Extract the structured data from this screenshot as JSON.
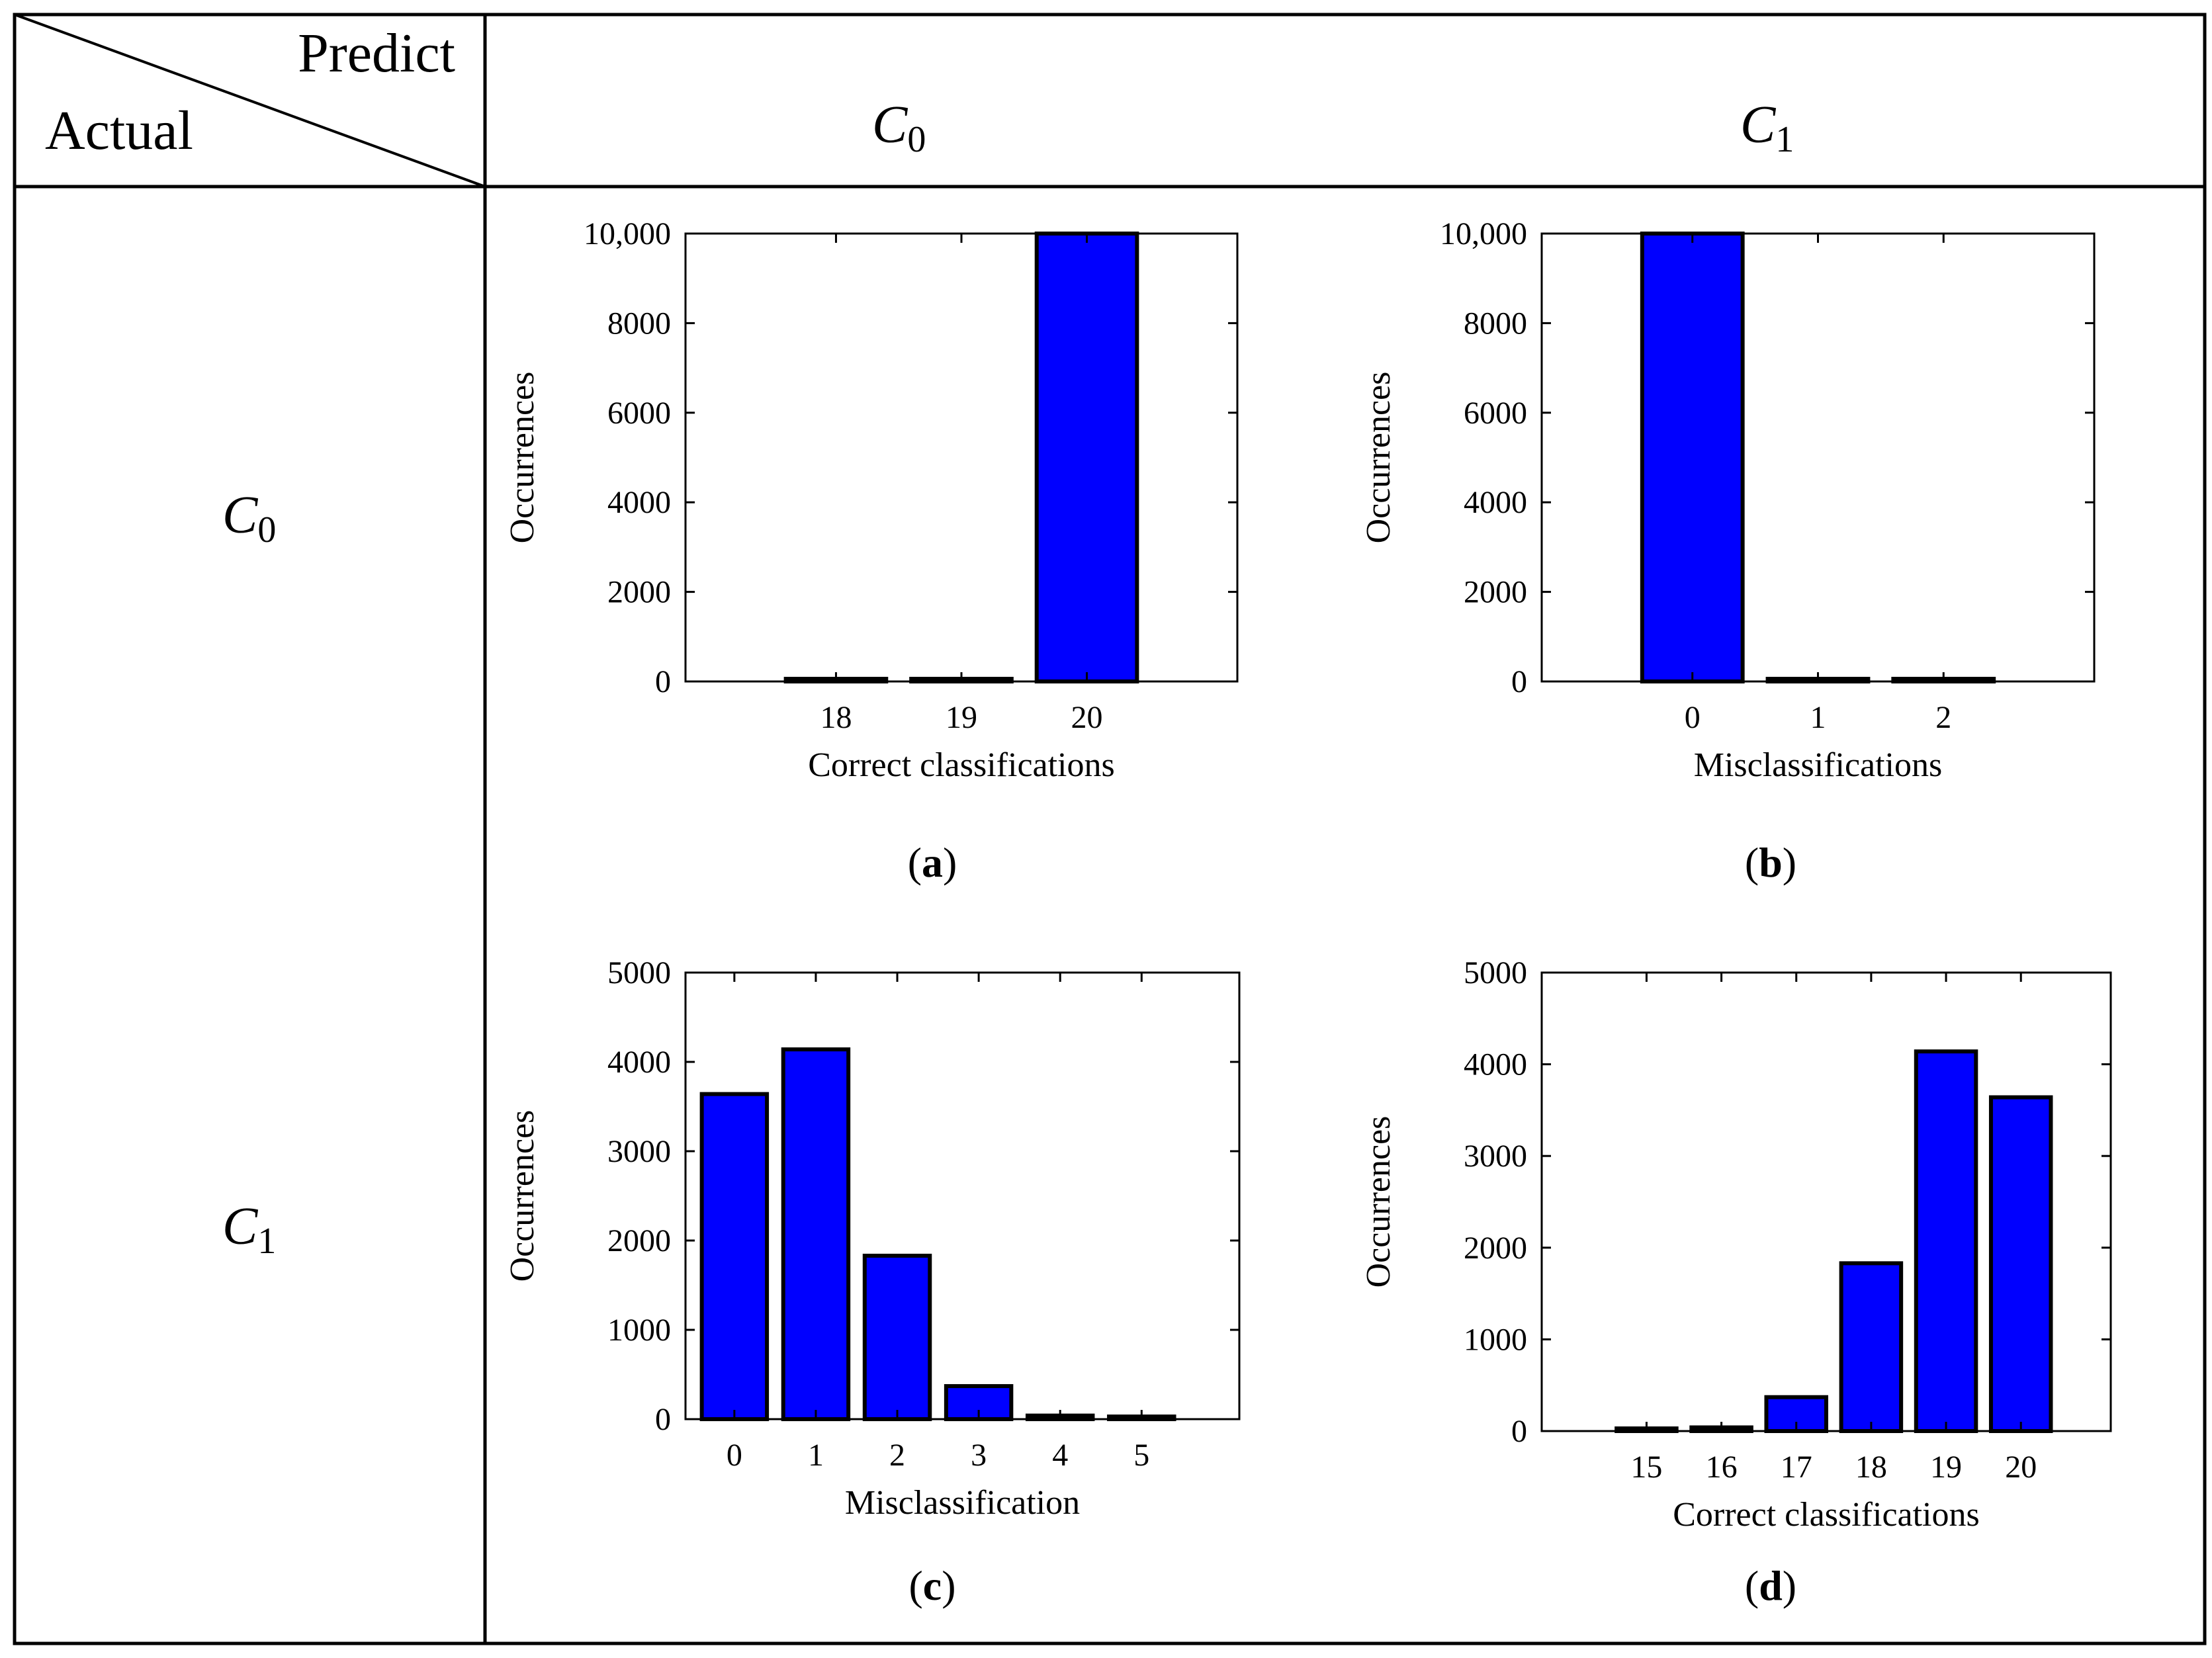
{
  "table": {
    "corner_top": "Predict",
    "corner_bottom": "Actual",
    "columns": [
      {
        "label": "C",
        "sub": "0"
      },
      {
        "label": "C",
        "sub": "1"
      }
    ],
    "rows": [
      {
        "label": "C",
        "sub": "0"
      },
      {
        "label": "C",
        "sub": "1"
      }
    ]
  },
  "colors": {
    "bar": "#0000ff",
    "bar_edge": "#000000",
    "border": "#000000"
  },
  "chart_data": [
    {
      "id": "a",
      "type": "bar",
      "caption": "(a)",
      "caption_letter": "a",
      "categories": [
        "18",
        "19",
        "20"
      ],
      "values": [
        5,
        5,
        10000
      ],
      "xlabel": "Correct classifications",
      "ylabel": "Occurrences",
      "ylim": [
        0,
        10000
      ],
      "yticks": [
        "0",
        "2000",
        "4000",
        "6000",
        "8000",
        "10,000"
      ],
      "yticks_values": [
        0,
        2000,
        4000,
        6000,
        8000,
        10000
      ],
      "xlim": [
        16.8,
        21.2
      ],
      "x": [
        18,
        19,
        20
      ]
    },
    {
      "id": "b",
      "type": "bar",
      "caption": "(b)",
      "caption_letter": "b",
      "categories": [
        "0",
        "1",
        "2"
      ],
      "values": [
        10000,
        5,
        5
      ],
      "xlabel": "Misclassifications",
      "ylabel": "Occurrences",
      "ylim": [
        0,
        10000
      ],
      "yticks": [
        "0",
        "2000",
        "4000",
        "6000",
        "8000",
        "10,000"
      ],
      "yticks_values": [
        0,
        2000,
        4000,
        6000,
        8000,
        10000
      ],
      "xlim": [
        -1.2,
        3.2
      ],
      "x": [
        0,
        1,
        2
      ]
    },
    {
      "id": "c",
      "type": "bar",
      "caption": "(c)",
      "caption_letter": "c",
      "categories": [
        "0",
        "1",
        "2",
        "3",
        "4",
        "5"
      ],
      "values": [
        3640,
        4140,
        1830,
        370,
        40,
        10
      ],
      "xlabel": "Misclassification",
      "ylabel": "Occurrences",
      "ylim": [
        0,
        5000
      ],
      "yticks": [
        "0",
        "1000",
        "2000",
        "3000",
        "4000",
        "5000"
      ],
      "yticks_values": [
        0,
        1000,
        2000,
        3000,
        4000,
        5000
      ],
      "xlim": [
        -0.6,
        6.2
      ],
      "x": [
        0,
        1,
        2,
        3,
        4,
        5
      ]
    },
    {
      "id": "d",
      "type": "bar",
      "caption": "(d)",
      "caption_letter": "d",
      "categories": [
        "15",
        "16",
        "17",
        "18",
        "19",
        "20"
      ],
      "values": [
        10,
        40,
        370,
        1830,
        4140,
        3640
      ],
      "xlabel": "Correct classifications",
      "ylabel": "Occurrences",
      "ylim": [
        0,
        5000
      ],
      "yticks": [
        "0",
        "1000",
        "2000",
        "3000",
        "4000",
        "5000"
      ],
      "yticks_values": [
        0,
        1000,
        2000,
        3000,
        4000,
        5000
      ],
      "xlim": [
        13.6,
        21.2
      ],
      "x": [
        15,
        16,
        17,
        18,
        19,
        20
      ]
    }
  ]
}
